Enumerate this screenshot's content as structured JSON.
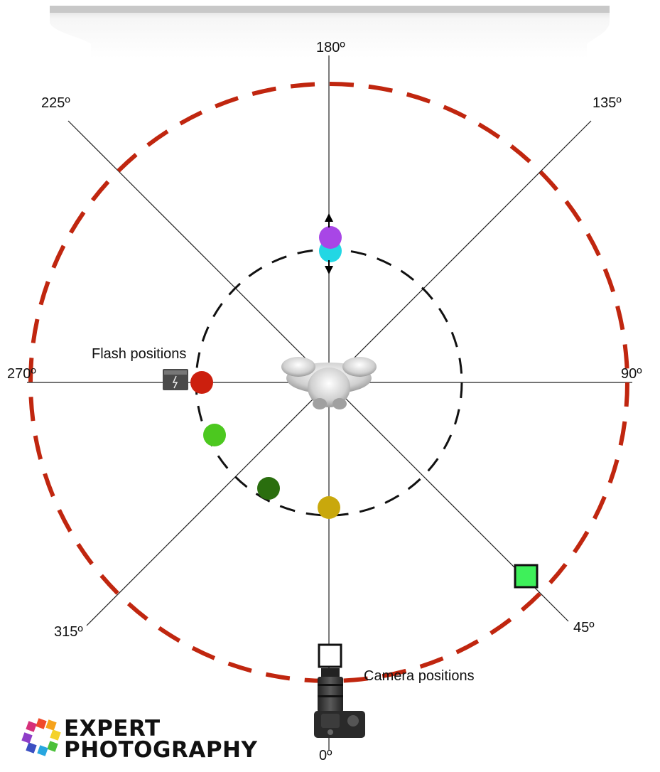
{
  "angles": {
    "a180": "180º",
    "a225": "225º",
    "a135": "135º",
    "a270": "270º",
    "a90": "90º",
    "a315": "315º",
    "a45": "45º",
    "a0": "0º"
  },
  "labels": {
    "flash_positions": "Flash positions",
    "camera_positions": "Camera positions"
  },
  "brand": {
    "line1": "EXPERT",
    "line2": "PHOTOGRAPHY"
  },
  "colors": {
    "outer_ring": "#c0260f",
    "inner_ring": "#111111",
    "flash_red": "#cc1f0e",
    "flash_light_green": "#4cc81f",
    "flash_dark_green": "#2a6e0e",
    "flash_gold": "#c9a80c",
    "flash_purple": "#a846e6",
    "flash_cyan": "#22d7e4",
    "camera_square_green": "#3ef05a",
    "camera_square_white": "#ffffff"
  },
  "icons": [
    "backdrop-icon",
    "flash-unit-icon",
    "subject-hands-icon",
    "camera-icon",
    "logo-icon",
    "arrow-up-icon",
    "arrow-down-icon"
  ]
}
